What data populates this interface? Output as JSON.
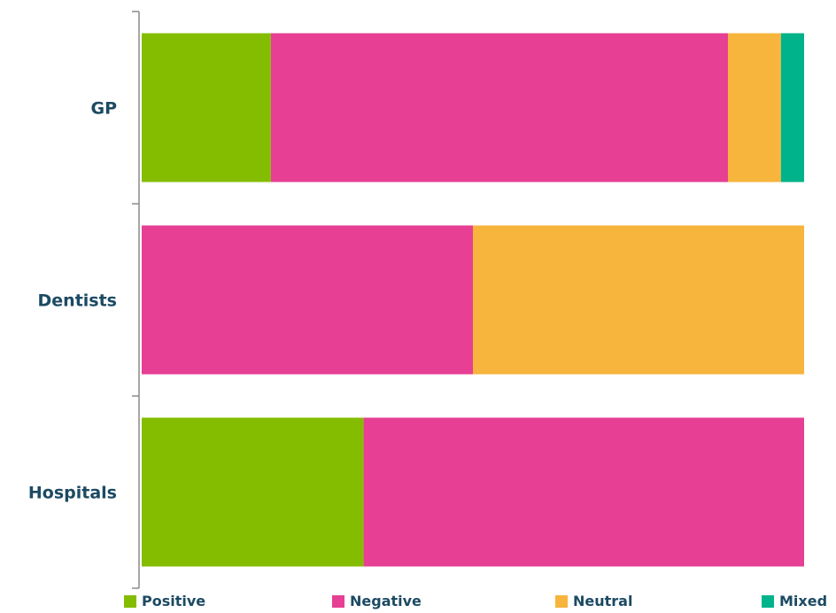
{
  "chart_data": {
    "type": "bar",
    "orientation": "horizontal",
    "stacked": true,
    "percent_stacked": true,
    "title": "",
    "xlabel": "",
    "ylabel": "",
    "categories": [
      "GP",
      "Dentists",
      "Hospitals"
    ],
    "series": [
      {
        "name": "Positive",
        "color": "#84bd00",
        "values": [
          19.5,
          0,
          33.5
        ]
      },
      {
        "name": "Negative",
        "color": "#e63f93",
        "values": [
          69,
          50,
          66.5
        ]
      },
      {
        "name": "Neutral",
        "color": "#f7b53d",
        "values": [
          8,
          50,
          0
        ]
      },
      {
        "name": "Mixed",
        "color": "#00b38a",
        "values": [
          3.5,
          0,
          0
        ]
      }
    ],
    "xlim": [
      0,
      100
    ],
    "grid": false,
    "legend_position": "bottom"
  }
}
